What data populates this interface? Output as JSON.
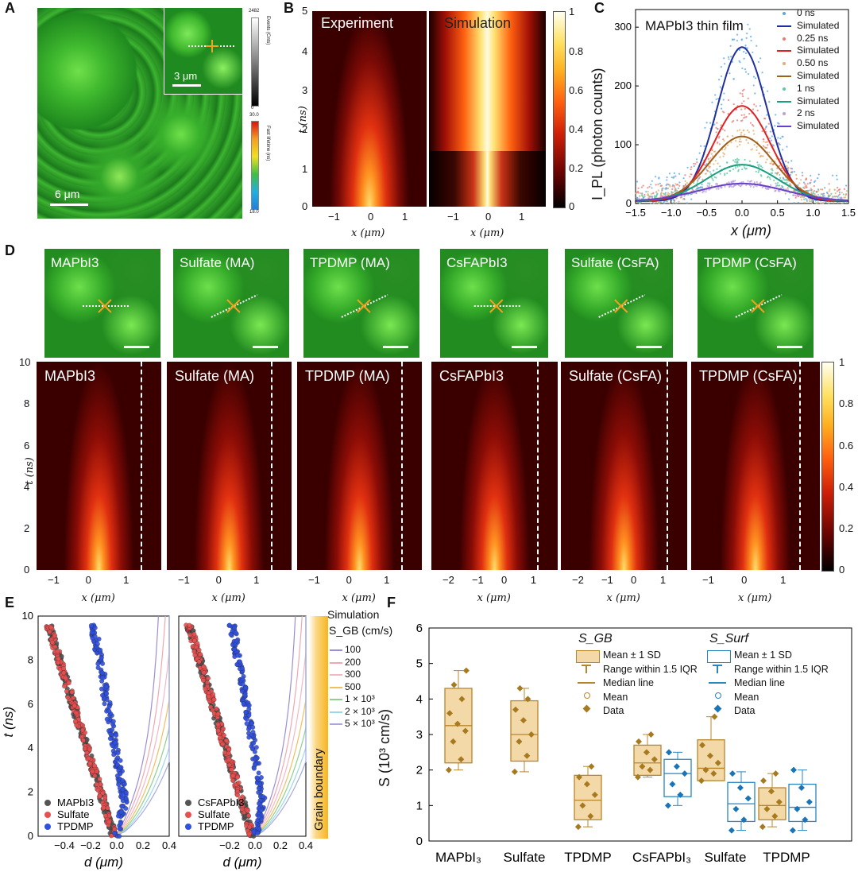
{
  "panels": {
    "A": {
      "label": "A",
      "scale_main": "6 μm",
      "scale_inset": "3 μm",
      "cb_events_top": "2482",
      "cb_events_bottom": "0",
      "cb_events_label": "Events (Cnts)",
      "cb_life_top": "30.0",
      "cb_life_bottom": "18.0",
      "cb_life_label": "Fast lifetime (ns)"
    },
    "B": {
      "label": "B",
      "title_exp": "Experiment",
      "title_sim": "Simulation",
      "ylabel": "t (ns)",
      "xlabel": "x (μm)",
      "yticks": [
        "5",
        "4",
        "3",
        "2",
        "1",
        "0"
      ],
      "xticks": [
        "−1",
        "0",
        "1"
      ],
      "cb_ticks": [
        "1",
        "0.8",
        "0.6",
        "0.4",
        "0.2",
        "0"
      ]
    },
    "C": {
      "label": "C",
      "title": "MAPbI3 thin film",
      "ylabel": "I_PL (photon counts)",
      "xlabel": "x (μm)",
      "yticks": [
        "300",
        "200",
        "100",
        "0"
      ],
      "xticks": [
        "−1.5",
        "−1.0",
        "−0.5",
        "0.0",
        "0.5",
        "1.0",
        "1.5"
      ],
      "legend": [
        {
          "text": "0 ns",
          "kind": "dot",
          "color": "#5aa9e6"
        },
        {
          "text": "Simulated",
          "kind": "line",
          "color": "#1f2fa0"
        },
        {
          "text": "0.25 ns",
          "kind": "dot",
          "color": "#f07878"
        },
        {
          "text": "Simulated",
          "kind": "line",
          "color": "#e02020"
        },
        {
          "text": "0.50 ns",
          "kind": "dot",
          "color": "#e0b070"
        },
        {
          "text": "Simulated",
          "kind": "line",
          "color": "#a0601a"
        },
        {
          "text": "1 ns",
          "kind": "dot",
          "color": "#5cc8a8"
        },
        {
          "text": "Simulated",
          "kind": "line",
          "color": "#1a9e7e"
        },
        {
          "text": "2 ns",
          "kind": "dot",
          "color": "#b8a0e0"
        },
        {
          "text": "Simulated",
          "kind": "line",
          "color": "#6a3fc8"
        }
      ]
    },
    "D": {
      "label": "D",
      "images": [
        "MAPbI3",
        "Sulfate (MA)",
        "TPDMP (MA)",
        "CsFAPbI3",
        "Sulfate (CsFA)",
        "TPDMP (CsFA)"
      ],
      "ylabel": "t (ns)",
      "xlabel": "x (μm)",
      "yticks": [
        "10",
        "8",
        "6",
        "4",
        "2",
        "0"
      ],
      "xticks_sets": [
        [
          "−1",
          "0",
          "1"
        ],
        [
          "−1",
          "0",
          "1"
        ],
        [
          "−1",
          "0",
          "1"
        ],
        [
          "−2",
          "−1",
          "0",
          "1"
        ],
        [
          "−2",
          "−1",
          "0",
          "1"
        ],
        [
          "−1",
          "0",
          "1"
        ]
      ],
      "cb_ticks": [
        "1",
        "0.8",
        "0.6",
        "0.4",
        "0.2",
        "0"
      ]
    },
    "E": {
      "label": "E",
      "ylabel": "t (ns)",
      "xlabel": "d (μm)",
      "yticks": [
        "10",
        "8",
        "6",
        "4",
        "2",
        "0"
      ],
      "xticks": [
        "−0.4",
        "−0.2",
        "0.0",
        "0.2",
        "0.4"
      ],
      "legend_left": [
        "MAPbI3",
        "Sulfate",
        "TPDMP"
      ],
      "legend_right": [
        "CsFAPbI3",
        "Sulfate",
        "TPDMP"
      ],
      "sim_title": "Simulation",
      "sim_sub": "S_GB (cm/s)",
      "sim_values": [
        "100",
        "200",
        "300",
        "500",
        "1 × 10³",
        "2 × 10³",
        "5 × 10³"
      ],
      "gb_label": "Grain boundary"
    },
    "F": {
      "label": "F",
      "ylabel": "S (10³ cm/s)",
      "yticks": [
        "6",
        "5",
        "4",
        "3",
        "2",
        "1",
        "0"
      ],
      "categories": [
        "MAPbI3",
        "Sulfate",
        "TPDMP",
        "CsFAPbI3",
        "Sulfate",
        "TPDMP"
      ],
      "legend_gb_title": "S_GB",
      "legend_surf_title": "S_Surf",
      "legend_items": [
        "Mean ± 1 SD",
        "Range within 1.5 IQR",
        "Median line",
        "Mean",
        "Data"
      ]
    }
  },
  "chart_data": [
    {
      "type": "scatter",
      "title": "MAPbI3 thin film",
      "xlabel": "x (μm)",
      "ylabel": "I_PL (photon counts)",
      "xlim": [
        -1.5,
        1.5
      ],
      "ylim": [
        0,
        330
      ],
      "series": [
        {
          "name": "0 ns",
          "peak": 262,
          "sigma": 0.35
        },
        {
          "name": "0.25 ns",
          "peak": 162,
          "sigma": 0.4
        },
        {
          "name": "0.50 ns",
          "peak": 110,
          "sigma": 0.45
        },
        {
          "name": "1 ns",
          "peak": 62,
          "sigma": 0.5
        },
        {
          "name": "2 ns",
          "peak": 30,
          "sigma": 0.6
        }
      ]
    },
    {
      "type": "box",
      "ylabel": "S (10³ cm/s)",
      "ylim": [
        0,
        6
      ],
      "categories": [
        "MAPbI3",
        "Sulfate",
        "TPDMP",
        "CsFAPbI3",
        "Sulfate",
        "TPDMP"
      ],
      "series": [
        {
          "name": "S_GB",
          "boxes": [
            {
              "q1": 2.2,
              "median": 3.25,
              "q3": 4.3,
              "min": 2.0,
              "max": 4.8,
              "data": [
                2.0,
                2.3,
                2.8,
                3.1,
                3.3,
                3.6,
                4.0,
                4.4,
                4.8
              ]
            },
            {
              "q1": 2.25,
              "median": 3.0,
              "q3": 3.95,
              "min": 1.95,
              "max": 4.3,
              "data": [
                1.95,
                2.4,
                2.8,
                3.0,
                3.4,
                3.7,
                4.0,
                4.3
              ]
            },
            {
              "q1": 0.6,
              "median": 1.15,
              "q3": 1.85,
              "min": 0.4,
              "max": 2.1,
              "data": [
                0.4,
                0.7,
                1.0,
                1.3,
                1.6,
                1.8,
                2.1
              ]
            },
            {
              "q1": 1.85,
              "median": 2.2,
              "q3": 2.7,
              "min": 1.8,
              "max": 3.0,
              "data": [
                1.8,
                2.0,
                2.1,
                2.3,
                2.5,
                2.8,
                3.0
              ]
            },
            {
              "q1": 1.7,
              "median": 2.05,
              "q3": 2.85,
              "min": 1.7,
              "max": 3.5,
              "data": [
                1.7,
                1.9,
                2.0,
                2.2,
                2.4,
                2.7,
                3.5
              ]
            },
            {
              "q1": 0.6,
              "median": 1.0,
              "q3": 1.5,
              "min": 0.4,
              "max": 1.9,
              "data": [
                0.4,
                0.7,
                0.9,
                1.1,
                1.4,
                1.7,
                1.9
              ]
            }
          ]
        },
        {
          "name": "S_Surf",
          "boxes": [
            null,
            null,
            null,
            {
              "q1": 1.25,
              "median": 1.9,
              "q3": 2.3,
              "min": 1.0,
              "max": 2.5,
              "data": [
                1.0,
                1.3,
                1.6,
                1.9,
                2.1,
                2.5
              ]
            },
            {
              "q1": 0.55,
              "median": 1.05,
              "q3": 1.65,
              "min": 0.3,
              "max": 1.95,
              "data": [
                0.3,
                0.6,
                0.9,
                1.2,
                1.5,
                1.9
              ]
            },
            {
              "q1": 0.55,
              "median": 0.95,
              "q3": 1.6,
              "min": 0.3,
              "max": 2.0,
              "data": [
                0.3,
                0.6,
                0.9,
                1.1,
                1.5,
                2.0
              ]
            }
          ]
        }
      ]
    }
  ]
}
